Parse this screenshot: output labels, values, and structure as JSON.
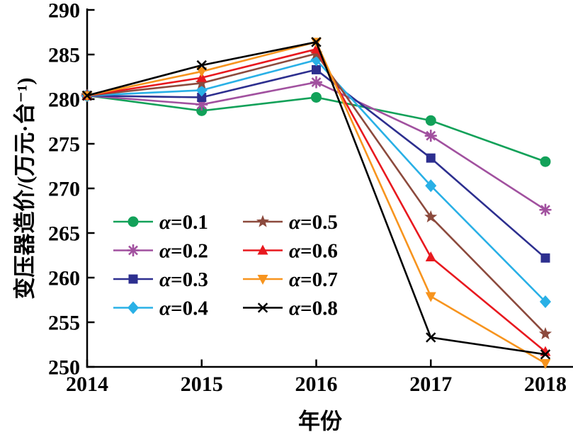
{
  "figure": {
    "background": "#ffffff"
  },
  "chart_data": {
    "type": "line",
    "title": "",
    "xlabel": "年份",
    "ylabel": "变压器造价/(万元·台⁻¹)",
    "x": [
      2014,
      2015,
      2016,
      2017,
      2018
    ],
    "x_tick_labels": [
      "2014",
      "2015",
      "2016",
      "2017",
      "2018"
    ],
    "y_ticks": [
      250,
      255,
      260,
      265,
      270,
      275,
      280,
      285,
      290
    ],
    "xlim": [
      2014,
      2018
    ],
    "ylim": [
      250,
      290
    ],
    "grid": false,
    "legend_position": "inside-lower-left, 2 columns, no frame",
    "axis_color": "#000000",
    "series": [
      {
        "name": "α=0.1",
        "marker": "circle",
        "color": "#12a159",
        "values": [
          280.4,
          278.7,
          280.2,
          277.6,
          273.0
        ]
      },
      {
        "name": "α=0.2",
        "marker": "asterisk",
        "color": "#a1519f",
        "values": [
          280.4,
          279.4,
          281.9,
          275.9,
          267.6
        ]
      },
      {
        "name": "α=0.3",
        "marker": "square",
        "color": "#2d2f8f",
        "values": [
          280.4,
          280.2,
          283.3,
          273.4,
          262.2
        ]
      },
      {
        "name": "α=0.4",
        "marker": "diamond",
        "color": "#29b0e6",
        "values": [
          280.4,
          281.0,
          284.4,
          270.3,
          257.3
        ]
      },
      {
        "name": "α=0.5",
        "marker": "star5",
        "color": "#8c4a3d",
        "values": [
          280.4,
          281.8,
          285.1,
          266.8,
          253.7
        ]
      },
      {
        "name": "α=0.6",
        "marker": "triangle-up",
        "color": "#e8191f",
        "values": [
          280.4,
          282.4,
          285.6,
          262.3,
          251.7
        ]
      },
      {
        "name": "α=0.7",
        "marker": "triangle-down",
        "color": "#f7941e",
        "values": [
          280.4,
          283.1,
          286.4,
          257.9,
          250.4
        ]
      },
      {
        "name": "α=0.8",
        "marker": "x",
        "color": "#000000",
        "values": [
          280.4,
          283.8,
          286.4,
          253.3,
          251.4
        ]
      }
    ]
  }
}
